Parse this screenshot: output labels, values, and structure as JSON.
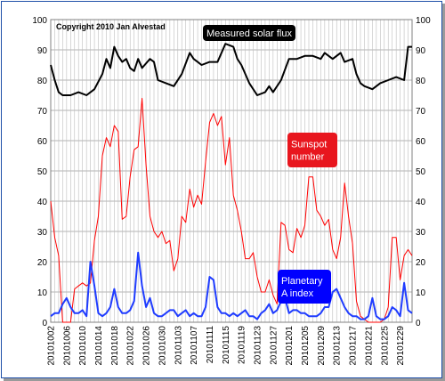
{
  "chart_data": {
    "type": "line",
    "copyright": "Copyright 2010 Jan Alvestad",
    "ylim": [
      0,
      100
    ],
    "yticks": [
      0,
      10,
      20,
      30,
      40,
      50,
      60,
      70,
      80,
      90,
      100
    ],
    "y_tick_labels": [
      "0",
      "10",
      "20",
      "30",
      "40",
      "50",
      "60",
      "70",
      "80",
      "90",
      "100"
    ],
    "x_start": "2010-10-02",
    "x_end": "2011-01-01",
    "x_tick_labels": [
      "20101002",
      "20101006",
      "20101010",
      "20101014",
      "20101018",
      "20101022",
      "20101026",
      "20101030",
      "20101103",
      "20101107",
      "20101111",
      "20101115",
      "20101119",
      "20101123",
      "20101127",
      "20101201",
      "20101205",
      "20101209",
      "20101213",
      "20101217",
      "20101221",
      "20101225",
      "20101229"
    ],
    "grid": true,
    "series": [
      {
        "name": "Measured solar flux",
        "label_lines": [
          "Measured solar flux"
        ],
        "color": "#000000",
        "label_bg": "#000000",
        "x": [
          "2010-10-02",
          "2010-10-03",
          "2010-10-04",
          "2010-10-05",
          "2010-10-07",
          "2010-10-09",
          "2010-10-11",
          "2010-10-13",
          "2010-10-15",
          "2010-10-16",
          "2010-10-17",
          "2010-10-18",
          "2010-10-19",
          "2010-10-20",
          "2010-10-21",
          "2010-10-22",
          "2010-10-23",
          "2010-10-24",
          "2010-10-25",
          "2010-10-27",
          "2010-10-28",
          "2010-10-29",
          "2010-10-31",
          "2010-11-02",
          "2010-11-04",
          "2010-11-06",
          "2010-11-07",
          "2010-11-08",
          "2010-11-09",
          "2010-11-11",
          "2010-11-13",
          "2010-11-15",
          "2010-11-17",
          "2010-11-18",
          "2010-11-19",
          "2010-11-21",
          "2010-11-23",
          "2010-11-25",
          "2010-11-26",
          "2010-11-27",
          "2010-11-28",
          "2010-11-29",
          "2010-12-01",
          "2010-12-03",
          "2010-12-05",
          "2010-12-07",
          "2010-12-09",
          "2010-12-10",
          "2010-12-12",
          "2010-12-14",
          "2010-12-15",
          "2010-12-17",
          "2010-12-18",
          "2010-12-19",
          "2010-12-20",
          "2010-12-22",
          "2010-12-24",
          "2010-12-26",
          "2010-12-28",
          "2010-12-30",
          "2010-12-31",
          "2011-01-01"
        ],
        "y": [
          85,
          80,
          76,
          75,
          75,
          76,
          75,
          77,
          82,
          87,
          84,
          91,
          88,
          86,
          87,
          84,
          83,
          87,
          84,
          87,
          86,
          80,
          79,
          78,
          82,
          89,
          87,
          86,
          85,
          86,
          86,
          92,
          91,
          87,
          85,
          79,
          75,
          76,
          78,
          76,
          78,
          80,
          87,
          87,
          88,
          88,
          87,
          89,
          87,
          89,
          86,
          87,
          82,
          79,
          78,
          77,
          79,
          80,
          81,
          80,
          91,
          91
        ]
      },
      {
        "name": "Sunspot number",
        "label_lines": [
          "Sunspot",
          "number"
        ],
        "color": "#ff0000",
        "label_bg": "#e8161e",
        "x": [
          "2010-10-02",
          "2010-10-03",
          "2010-10-04",
          "2010-10-05",
          "2010-10-06",
          "2010-10-07",
          "2010-10-08",
          "2010-10-09",
          "2010-10-10",
          "2010-10-11",
          "2010-10-12",
          "2010-10-13",
          "2010-10-14",
          "2010-10-15",
          "2010-10-16",
          "2010-10-17",
          "2010-10-18",
          "2010-10-19",
          "2010-10-20",
          "2010-10-21",
          "2010-10-22",
          "2010-10-23",
          "2010-10-24",
          "2010-10-25",
          "2010-10-26",
          "2010-10-27",
          "2010-10-28",
          "2010-10-29",
          "2010-10-30",
          "2010-10-31",
          "2010-11-01",
          "2010-11-02",
          "2010-11-03",
          "2010-11-04",
          "2010-11-05",
          "2010-11-06",
          "2010-11-07",
          "2010-11-08",
          "2010-11-09",
          "2010-11-10",
          "2010-11-11",
          "2010-11-12",
          "2010-11-13",
          "2010-11-14",
          "2010-11-15",
          "2010-11-16",
          "2010-11-17",
          "2010-11-18",
          "2010-11-19",
          "2010-11-20",
          "2010-11-21",
          "2010-11-22",
          "2010-11-23",
          "2010-11-24",
          "2010-11-25",
          "2010-11-26",
          "2010-11-27",
          "2010-11-28",
          "2010-11-29",
          "2010-11-30",
          "2010-12-01",
          "2010-12-02",
          "2010-12-03",
          "2010-12-04",
          "2010-12-05",
          "2010-12-06",
          "2010-12-07",
          "2010-12-08",
          "2010-12-09",
          "2010-12-10",
          "2010-12-11",
          "2010-12-12",
          "2010-12-13",
          "2010-12-14",
          "2010-12-15",
          "2010-12-16",
          "2010-12-17",
          "2010-12-18",
          "2010-12-19",
          "2010-12-20",
          "2010-12-21",
          "2010-12-22",
          "2010-12-23",
          "2010-12-24",
          "2010-12-25",
          "2010-12-26",
          "2010-12-27",
          "2010-12-28",
          "2010-12-29",
          "2010-12-30",
          "2010-12-31",
          "2011-01-01"
        ],
        "y": [
          40,
          28,
          22,
          0,
          0,
          0,
          11,
          12,
          13,
          12,
          13,
          27,
          35,
          55,
          61,
          58,
          65,
          63,
          34,
          35,
          48,
          57,
          58,
          74,
          52,
          35,
          30,
          28,
          30,
          26,
          27,
          17,
          21,
          35,
          33,
          44,
          38,
          42,
          39,
          53,
          66,
          69,
          65,
          68,
          52,
          61,
          42,
          37,
          30,
          21,
          21,
          23,
          15,
          10,
          10,
          14,
          9,
          6,
          33,
          32,
          24,
          23,
          31,
          28,
          32,
          48,
          48,
          37,
          35,
          32,
          34,
          24,
          21,
          28,
          46,
          35,
          26,
          7,
          2,
          1,
          0,
          0,
          0,
          0,
          1,
          5,
          28,
          28,
          14,
          22,
          24,
          22
        ]
      },
      {
        "name": "Planetary A index",
        "label_lines": [
          "Planetary",
          "A index"
        ],
        "color": "#1f3cff",
        "label_bg": "#0000ff",
        "x": [
          "2010-10-02",
          "2010-10-03",
          "2010-10-04",
          "2010-10-05",
          "2010-10-06",
          "2010-10-07",
          "2010-10-08",
          "2010-10-09",
          "2010-10-10",
          "2010-10-11",
          "2010-10-12",
          "2010-10-13",
          "2010-10-14",
          "2010-10-15",
          "2010-10-16",
          "2010-10-17",
          "2010-10-18",
          "2010-10-19",
          "2010-10-20",
          "2010-10-21",
          "2010-10-22",
          "2010-10-23",
          "2010-10-24",
          "2010-10-25",
          "2010-10-26",
          "2010-10-27",
          "2010-10-28",
          "2010-10-29",
          "2010-10-30",
          "2010-10-31",
          "2010-11-01",
          "2010-11-02",
          "2010-11-03",
          "2010-11-04",
          "2010-11-05",
          "2010-11-06",
          "2010-11-07",
          "2010-11-08",
          "2010-11-09",
          "2010-11-10",
          "2010-11-11",
          "2010-11-12",
          "2010-11-13",
          "2010-11-14",
          "2010-11-15",
          "2010-11-16",
          "2010-11-17",
          "2010-11-18",
          "2010-11-19",
          "2010-11-20",
          "2010-11-21",
          "2010-11-22",
          "2010-11-23",
          "2010-11-24",
          "2010-11-25",
          "2010-11-26",
          "2010-11-27",
          "2010-11-28",
          "2010-11-29",
          "2010-11-30",
          "2010-12-01",
          "2010-12-02",
          "2010-12-03",
          "2010-12-04",
          "2010-12-05",
          "2010-12-06",
          "2010-12-07",
          "2010-12-08",
          "2010-12-09",
          "2010-12-10",
          "2010-12-11",
          "2010-12-12",
          "2010-12-13",
          "2010-12-14",
          "2010-12-15",
          "2010-12-16",
          "2010-12-17",
          "2010-12-18",
          "2010-12-19",
          "2010-12-20",
          "2010-12-21",
          "2010-12-22",
          "2010-12-23",
          "2010-12-24",
          "2010-12-25",
          "2010-12-26",
          "2010-12-27",
          "2010-12-28",
          "2010-12-29",
          "2010-12-30",
          "2010-12-31",
          "2011-01-01"
        ],
        "y": [
          2,
          3,
          3,
          6,
          8,
          5,
          3,
          3,
          4,
          2,
          20,
          12,
          3,
          2,
          3,
          5,
          11,
          5,
          3,
          3,
          4,
          7,
          23,
          12,
          5,
          8,
          3,
          2,
          2,
          3,
          4,
          4,
          2,
          3,
          4,
          2,
          3,
          2,
          2,
          5,
          15,
          14,
          5,
          3,
          3,
          2,
          3,
          2,
          3,
          4,
          2,
          2,
          1,
          3,
          4,
          6,
          3,
          4,
          7,
          8,
          3,
          4,
          4,
          3,
          3,
          2,
          2,
          2,
          3,
          5,
          5,
          10,
          11,
          8,
          5,
          3,
          2,
          2,
          1,
          1,
          2,
          8,
          2,
          1,
          1,
          2,
          5,
          4,
          2,
          13,
          4,
          3
        ]
      }
    ]
  }
}
